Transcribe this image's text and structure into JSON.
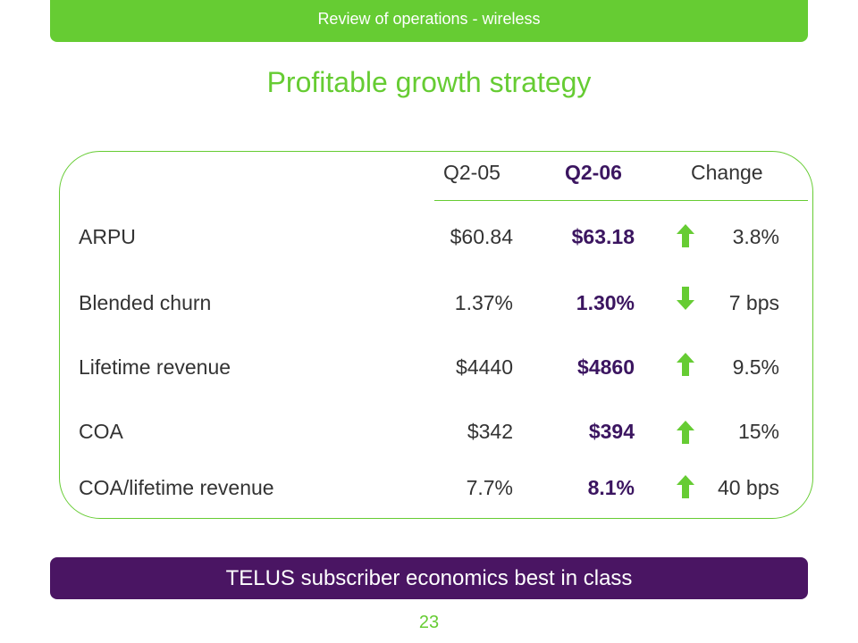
{
  "header": {
    "text": "Review of operations - wireless"
  },
  "title": "Profitable growth strategy",
  "colors": {
    "green": "#66cc33",
    "purple": "#4a1563",
    "value_purple": "#3b1560"
  },
  "table": {
    "headers": {
      "q205": "Q2-05",
      "q206": "Q2-06",
      "change": "Change"
    },
    "rows": [
      {
        "label": "ARPU",
        "q205": "$60.84",
        "q206": "$63.18",
        "direction": "up",
        "change": "3.8%"
      },
      {
        "label": "Blended churn",
        "q205": "1.37%",
        "q206": "1.30%",
        "direction": "down",
        "change": "7 bps"
      },
      {
        "label": "Lifetime revenue",
        "q205": "$4440",
        "q206": "$4860",
        "direction": "up",
        "change": "9.5%"
      },
      {
        "label": "COA",
        "q205": "$342",
        "q206": "$394",
        "direction": "up",
        "change": "15%"
      },
      {
        "label": "COA/lifetime revenue",
        "q205": "7.7%",
        "q206": "8.1%",
        "direction": "up",
        "change": "40 bps"
      }
    ]
  },
  "footer": {
    "text": "TELUS subscriber economics best in class"
  },
  "page_number": "23"
}
